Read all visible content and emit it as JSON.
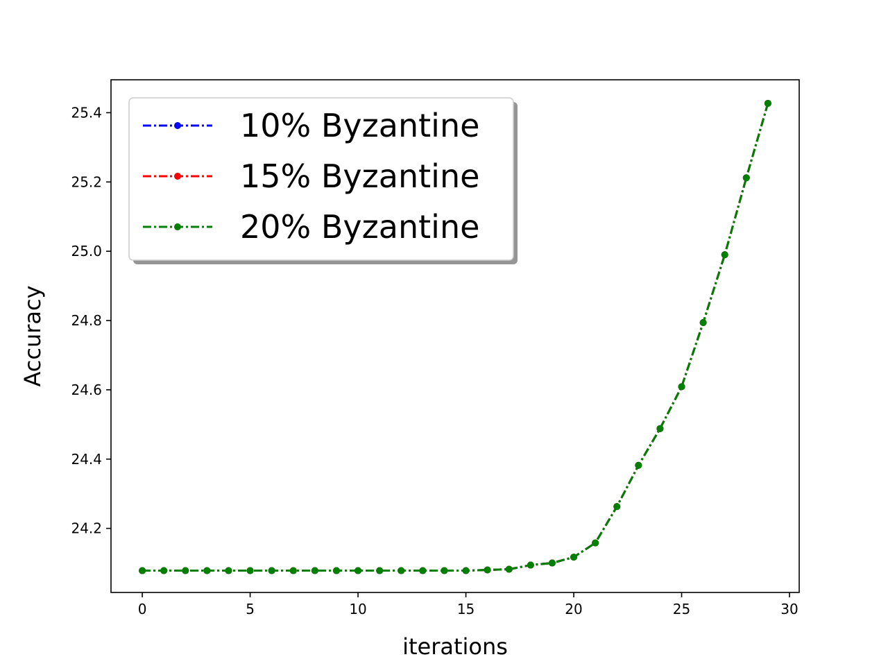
{
  "chart_data": {
    "type": "line",
    "title": "",
    "xlabel": "iterations",
    "ylabel": "Accuracy",
    "xlim": [
      -1.45,
      30.45
    ],
    "ylim": [
      24.015,
      25.495
    ],
    "xticks": [
      0,
      5,
      10,
      15,
      20,
      25,
      30
    ],
    "yticks": [
      24.2,
      24.4,
      24.6,
      24.8,
      25.0,
      25.2,
      25.4
    ],
    "ytick_labels": [
      "24.2",
      "24.4",
      "24.6",
      "24.8",
      "25.0",
      "25.2",
      "25.4"
    ],
    "grid": false,
    "legend_position": "upper-left",
    "x": [
      0,
      1,
      2,
      3,
      4,
      5,
      6,
      7,
      8,
      9,
      10,
      11,
      12,
      13,
      14,
      15,
      16,
      17,
      18,
      19,
      20,
      21,
      22,
      23,
      24,
      25,
      26,
      27,
      28,
      29
    ],
    "series": [
      {
        "name": "10% Byzantine",
        "color": "#0000ff",
        "values": [
          24.078,
          24.078,
          24.078,
          24.078,
          24.078,
          24.078,
          24.078,
          24.078,
          24.078,
          24.078,
          24.078,
          24.078,
          24.078,
          24.078,
          24.078,
          24.078,
          24.08,
          24.082,
          24.094,
          24.1,
          24.117,
          24.158,
          24.263,
          24.382,
          24.488,
          24.609,
          24.794,
          24.99,
          25.212,
          25.427
        ]
      },
      {
        "name": "15% Byzantine",
        "color": "#ff0000",
        "values": [
          24.078,
          24.078,
          24.078,
          24.078,
          24.078,
          24.078,
          24.078,
          24.078,
          24.078,
          24.078,
          24.078,
          24.078,
          24.078,
          24.078,
          24.078,
          24.078,
          24.08,
          24.082,
          24.094,
          24.1,
          24.117,
          24.158,
          24.263,
          24.382,
          24.488,
          24.609,
          24.794,
          24.99,
          25.212,
          25.427
        ]
      },
      {
        "name": "20% Byzantine",
        "color": "#008000",
        "values": [
          24.078,
          24.078,
          24.078,
          24.078,
          24.078,
          24.078,
          24.078,
          24.078,
          24.078,
          24.078,
          24.078,
          24.078,
          24.078,
          24.078,
          24.078,
          24.078,
          24.08,
          24.082,
          24.094,
          24.1,
          24.117,
          24.158,
          24.263,
          24.382,
          24.488,
          24.609,
          24.794,
          24.99,
          25.212,
          25.427
        ]
      }
    ]
  }
}
